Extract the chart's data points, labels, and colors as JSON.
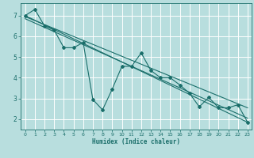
{
  "xlabel": "Humidex (Indice chaleur)",
  "bg_color": "#b8dede",
  "grid_color": "#ffffff",
  "line_color": "#1a6e6a",
  "xlim": [
    -0.5,
    23.4
  ],
  "ylim": [
    1.5,
    7.6
  ],
  "yticks": [
    2,
    3,
    4,
    5,
    6,
    7
  ],
  "xticks": [
    0,
    1,
    2,
    3,
    4,
    5,
    6,
    7,
    8,
    9,
    10,
    11,
    12,
    13,
    14,
    15,
    16,
    17,
    18,
    19,
    20,
    21,
    22,
    23
  ],
  "series": [
    [
      0,
      7.0
    ],
    [
      1,
      7.3
    ],
    [
      2,
      6.5
    ],
    [
      3,
      6.3
    ],
    [
      4,
      5.45
    ],
    [
      5,
      5.45
    ],
    [
      6,
      5.7
    ],
    [
      7,
      2.95
    ],
    [
      8,
      2.45
    ],
    [
      9,
      3.45
    ],
    [
      10,
      4.55
    ],
    [
      11,
      4.55
    ],
    [
      12,
      5.2
    ],
    [
      13,
      4.35
    ],
    [
      14,
      4.0
    ],
    [
      15,
      4.0
    ],
    [
      16,
      3.65
    ],
    [
      17,
      3.25
    ],
    [
      18,
      2.6
    ],
    [
      19,
      3.05
    ],
    [
      20,
      2.55
    ],
    [
      21,
      2.55
    ],
    [
      22,
      2.7
    ],
    [
      23,
      1.85
    ]
  ],
  "trend_series": [
    [
      [
        0,
        7.0
      ],
      [
        23,
        1.85
      ]
    ],
    [
      [
        0,
        6.85
      ],
      [
        23,
        2.05
      ]
    ],
    [
      [
        0,
        6.95
      ],
      [
        23,
        2.55
      ]
    ]
  ]
}
